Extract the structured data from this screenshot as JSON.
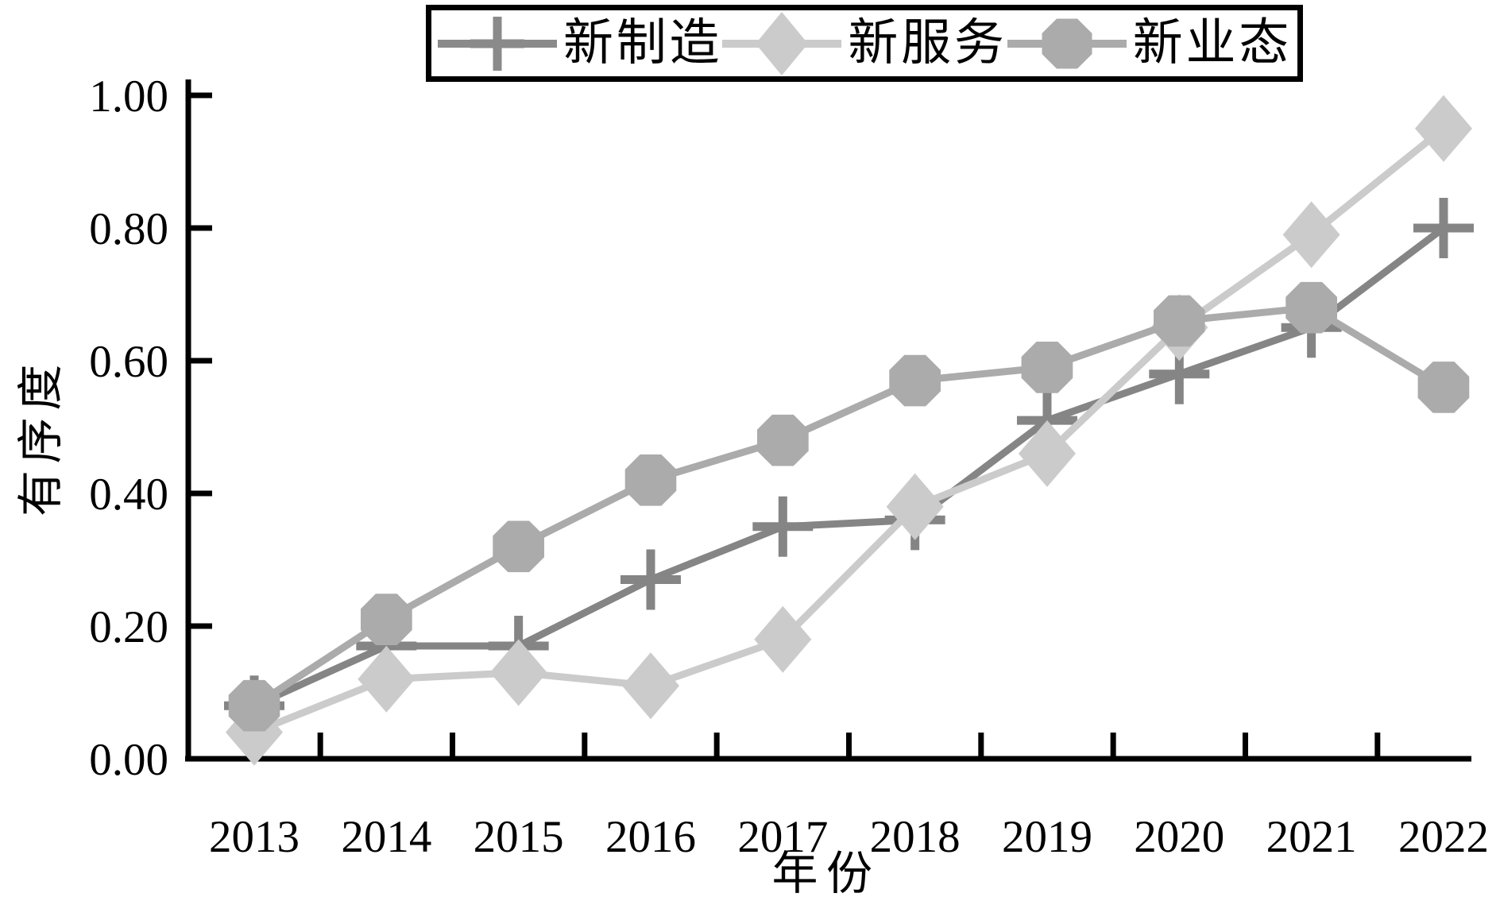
{
  "chart": {
    "x_axis_label": "年份",
    "y_axis_label": "有序度",
    "background_color": "#ffffff",
    "axis_color": "#000000"
  },
  "legend": {
    "position": "top",
    "items": [
      {
        "label": "新制造",
        "marker": "plus",
        "color": "#8a8a8a"
      },
      {
        "label": "新服务",
        "marker": "diamond",
        "color": "#cbcbcb"
      },
      {
        "label": "新业态",
        "marker": "octagon",
        "color": "#ababab"
      }
    ]
  },
  "chart_data": {
    "type": "line",
    "title": "",
    "xlabel": "年份",
    "ylabel": "有序度",
    "categories": [
      "2013",
      "2014",
      "2015",
      "2016",
      "2017",
      "2018",
      "2019",
      "2020",
      "2021",
      "2022"
    ],
    "y_ticks": [
      "0.00",
      "0.20",
      "0.40",
      "0.60",
      "0.80",
      "1.00"
    ],
    "ylim": [
      0.0,
      1.0
    ],
    "grid": false,
    "legend_position": "top",
    "series": [
      {
        "name": "新制造",
        "marker": "plus",
        "color": "#858585",
        "values": [
          0.08,
          0.17,
          0.17,
          0.27,
          0.35,
          0.36,
          0.51,
          0.58,
          0.65,
          0.8
        ]
      },
      {
        "name": "新服务",
        "marker": "diamond",
        "color": "#cbcbcb",
        "values": [
          0.04,
          0.12,
          0.13,
          0.11,
          0.18,
          0.38,
          0.46,
          0.65,
          0.79,
          0.95
        ]
      },
      {
        "name": "新业态",
        "marker": "octagon",
        "color": "#ababab",
        "values": [
          0.08,
          0.21,
          0.32,
          0.42,
          0.48,
          0.57,
          0.59,
          0.66,
          0.68,
          0.56
        ]
      }
    ]
  }
}
